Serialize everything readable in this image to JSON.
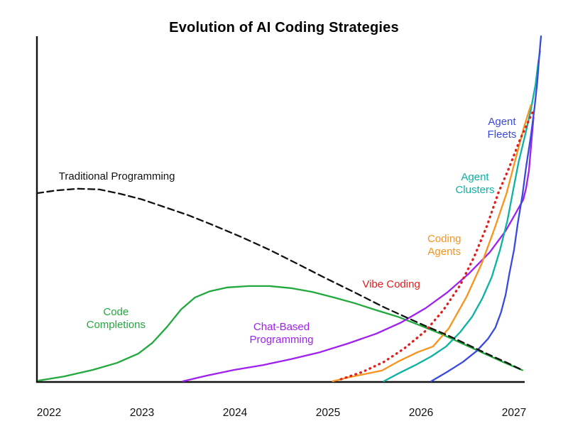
{
  "page": {
    "background": "#ffffff"
  },
  "chart_data": {
    "type": "line",
    "title": "Evolution of AI Coding Strategies",
    "xlabel": "",
    "ylabel": "",
    "xlim": [
      2021.85,
      2027.35
    ],
    "ylim": [
      0,
      1
    ],
    "grid": false,
    "legend": "inline-colored-labels",
    "axis_color": "#111111",
    "x_ticks": [
      "2022",
      "2023",
      "2024",
      "2025",
      "2026",
      "2027"
    ],
    "series": [
      {
        "id": "code-completions",
        "label": "Code\nCompletions",
        "color": "#22a93e",
        "style": "solid",
        "width": 2.3,
        "label_pos": [
          2022.72,
          0.183
        ],
        "points": [
          [
            2021.89,
            0.002
          ],
          [
            2022.16,
            0.014
          ],
          [
            2022.47,
            0.033
          ],
          [
            2022.73,
            0.053
          ],
          [
            2022.96,
            0.08
          ],
          [
            2023.11,
            0.111
          ],
          [
            2023.27,
            0.158
          ],
          [
            2023.42,
            0.208
          ],
          [
            2023.57,
            0.243
          ],
          [
            2023.73,
            0.261
          ],
          [
            2023.92,
            0.272
          ],
          [
            2024.15,
            0.276
          ],
          [
            2024.37,
            0.276
          ],
          [
            2024.6,
            0.27
          ],
          [
            2024.83,
            0.259
          ],
          [
            2025.06,
            0.243
          ],
          [
            2025.29,
            0.226
          ],
          [
            2025.52,
            0.206
          ],
          [
            2025.75,
            0.187
          ],
          [
            2025.98,
            0.163
          ],
          [
            2026.21,
            0.138
          ],
          [
            2026.43,
            0.111
          ],
          [
            2026.66,
            0.083
          ],
          [
            2026.88,
            0.056
          ],
          [
            2027.09,
            0.032
          ]
        ]
      },
      {
        "id": "chat-based-programming",
        "label": "Chat-Based\nProgramming",
        "color": "#a020f0",
        "style": "solid",
        "width": 2.3,
        "label_pos": [
          2024.5,
          0.14
        ],
        "points": [
          [
            2023.44,
            0.0
          ],
          [
            2023.69,
            0.016
          ],
          [
            2023.99,
            0.033
          ],
          [
            2024.3,
            0.047
          ],
          [
            2024.6,
            0.064
          ],
          [
            2024.91,
            0.084
          ],
          [
            2025.21,
            0.109
          ],
          [
            2025.52,
            0.138
          ],
          [
            2025.79,
            0.171
          ],
          [
            2026.05,
            0.212
          ],
          [
            2026.28,
            0.257
          ],
          [
            2026.51,
            0.311
          ],
          [
            2026.74,
            0.374
          ],
          [
            2026.91,
            0.436
          ],
          [
            2027.02,
            0.488
          ],
          [
            2027.1,
            0.527
          ],
          [
            2027.13,
            0.56
          ],
          [
            2027.16,
            0.611
          ],
          [
            2027.18,
            0.673
          ],
          [
            2027.2,
            0.735
          ],
          [
            2027.21,
            0.765
          ]
        ]
      },
      {
        "id": "agent-clusters",
        "label": "Agent\nClusters",
        "color": "#0cb2a2",
        "style": "solid",
        "width": 2.3,
        "label_pos": [
          2026.58,
          0.574
        ],
        "points": [
          [
            2025.6,
            0.0
          ],
          [
            2025.76,
            0.023
          ],
          [
            2025.94,
            0.047
          ],
          [
            2026.11,
            0.072
          ],
          [
            2026.27,
            0.101
          ],
          [
            2026.42,
            0.142
          ],
          [
            2026.55,
            0.187
          ],
          [
            2026.66,
            0.241
          ],
          [
            2026.76,
            0.302
          ],
          [
            2026.85,
            0.381
          ],
          [
            2026.93,
            0.467
          ],
          [
            2026.99,
            0.553
          ],
          [
            2027.05,
            0.636
          ],
          [
            2027.12,
            0.714
          ],
          [
            2027.18,
            0.786
          ],
          [
            2027.23,
            0.858
          ],
          [
            2027.26,
            0.924
          ],
          [
            2027.28,
            0.957
          ]
        ]
      },
      {
        "id": "agent-fleets",
        "label": "Agent\nFleets",
        "color": "#3a4add",
        "style": "solid",
        "width": 2.3,
        "label_pos": [
          2026.87,
          0.735
        ],
        "points": [
          [
            2026.11,
            0.0
          ],
          [
            2026.28,
            0.027
          ],
          [
            2026.45,
            0.056
          ],
          [
            2026.6,
            0.088
          ],
          [
            2026.72,
            0.123
          ],
          [
            2026.8,
            0.156
          ],
          [
            2026.86,
            0.2
          ],
          [
            2026.91,
            0.251
          ],
          [
            2026.95,
            0.313
          ],
          [
            2027.0,
            0.381
          ],
          [
            2027.04,
            0.457
          ],
          [
            2027.09,
            0.539
          ],
          [
            2027.13,
            0.621
          ],
          [
            2027.18,
            0.71
          ],
          [
            2027.22,
            0.792
          ],
          [
            2027.25,
            0.868
          ],
          [
            2027.27,
            0.94
          ],
          [
            2027.29,
            1.0
          ]
        ]
      },
      {
        "id": "coding-agents",
        "label": "Coding\nAgents",
        "color": "#f7941e",
        "style": "solid",
        "width": 2.3,
        "label_pos": [
          2026.25,
          0.395
        ],
        "points": [
          [
            2025.05,
            0.0
          ],
          [
            2025.23,
            0.012
          ],
          [
            2025.4,
            0.021
          ],
          [
            2025.58,
            0.031
          ],
          [
            2025.76,
            0.058
          ],
          [
            2025.96,
            0.084
          ],
          [
            2026.13,
            0.101
          ],
          [
            2026.3,
            0.154
          ],
          [
            2026.49,
            0.245
          ],
          [
            2026.65,
            0.34
          ],
          [
            2026.79,
            0.442
          ],
          [
            2026.92,
            0.545
          ],
          [
            2027.02,
            0.648
          ],
          [
            2027.11,
            0.739
          ],
          [
            2027.18,
            0.8
          ]
        ]
      },
      {
        "id": "traditional-programming",
        "label": "Traditional Programming",
        "color": "#111111",
        "style": "dashed",
        "width": 2.3,
        "label_pos": [
          2022.73,
          0.595
        ],
        "points": [
          [
            2021.87,
            0.545
          ],
          [
            2022.08,
            0.553
          ],
          [
            2022.31,
            0.558
          ],
          [
            2022.54,
            0.556
          ],
          [
            2022.77,
            0.543
          ],
          [
            2023.0,
            0.527
          ],
          [
            2023.23,
            0.506
          ],
          [
            2023.5,
            0.481
          ],
          [
            2023.76,
            0.453
          ],
          [
            2024.07,
            0.418
          ],
          [
            2024.37,
            0.381
          ],
          [
            2024.68,
            0.339
          ],
          [
            2024.98,
            0.298
          ],
          [
            2025.29,
            0.257
          ],
          [
            2025.59,
            0.216
          ],
          [
            2025.86,
            0.183
          ],
          [
            2026.05,
            0.16
          ],
          [
            2026.28,
            0.134
          ],
          [
            2026.51,
            0.105
          ],
          [
            2026.74,
            0.076
          ],
          [
            2026.93,
            0.053
          ],
          [
            2027.09,
            0.032
          ]
        ]
      },
      {
        "id": "vibe-coding",
        "label": "Vibe Coding",
        "color": "#e01f1f",
        "style": "dotted",
        "width": 3.3,
        "label_pos": [
          2025.68,
          0.282
        ],
        "points": [
          [
            2025.14,
            0.006
          ],
          [
            2025.37,
            0.027
          ],
          [
            2025.6,
            0.056
          ],
          [
            2025.82,
            0.095
          ],
          [
            2026.05,
            0.146
          ],
          [
            2026.24,
            0.206
          ],
          [
            2026.42,
            0.278
          ],
          [
            2026.57,
            0.36
          ],
          [
            2026.71,
            0.451
          ],
          [
            2026.83,
            0.545
          ],
          [
            2026.95,
            0.621
          ],
          [
            2027.06,
            0.698
          ],
          [
            2027.15,
            0.751
          ],
          [
            2027.2,
            0.78
          ]
        ]
      }
    ]
  }
}
